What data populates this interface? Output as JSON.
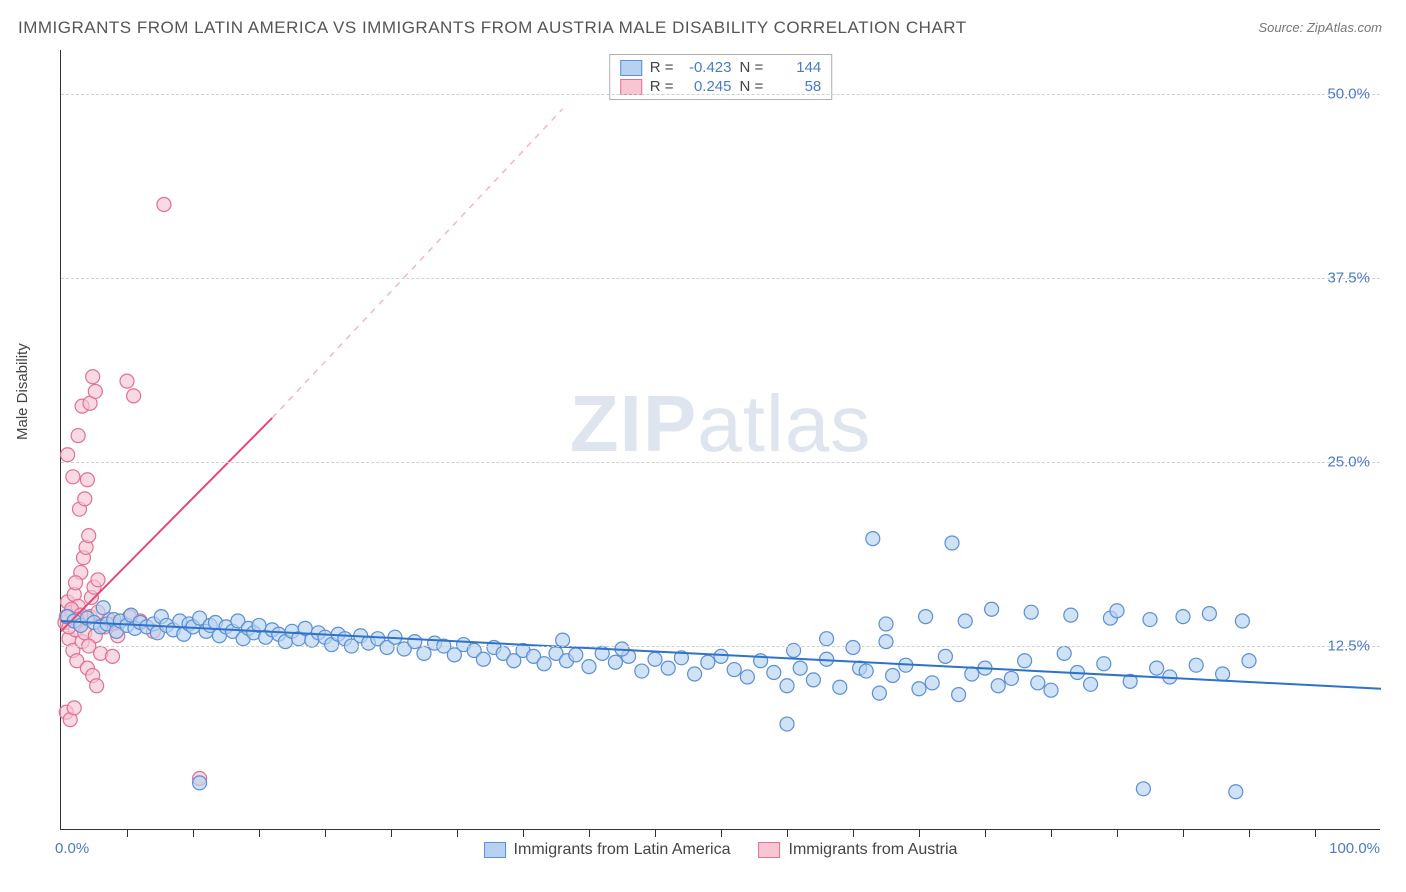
{
  "title": "IMMIGRANTS FROM LATIN AMERICA VS IMMIGRANTS FROM AUSTRIA MALE DISABILITY CORRELATION CHART",
  "source": "Source: ZipAtlas.com",
  "ylabel": "Male Disability",
  "watermark_a": "ZIP",
  "watermark_b": "atlas",
  "chart": {
    "type": "scatter",
    "xlim": [
      0,
      100
    ],
    "ylim": [
      0,
      53
    ],
    "xtick_labels": {
      "min": "0.0%",
      "max": "100.0%"
    },
    "xtick_minor_step": 5,
    "ytick_step": 12.5,
    "ytick_labels": [
      "12.5%",
      "25.0%",
      "37.5%",
      "50.0%"
    ],
    "grid_color": "#d0d0d0",
    "background_color": "#ffffff",
    "axis_color": "#333333",
    "marker_radius": 7,
    "marker_stroke_width": 1.2,
    "series": [
      {
        "name": "Immigrants from Latin America",
        "color_fill": "#b7d2f0",
        "color_stroke": "#5b8fd6",
        "R": "-0.423",
        "N": "144",
        "trend": {
          "x1": 0,
          "y1": 14.2,
          "x2": 100,
          "y2": 9.6,
          "color": "#2f72c9",
          "dash": false,
          "width": 2
        },
        "points": [
          [
            0.5,
            14.5
          ],
          [
            1,
            14.2
          ],
          [
            1.5,
            13.9
          ],
          [
            2,
            14.4
          ],
          [
            2.5,
            14.1
          ],
          [
            3,
            13.8
          ],
          [
            3.2,
            15.1
          ],
          [
            3.5,
            14.0
          ],
          [
            4,
            14.3
          ],
          [
            4.2,
            13.5
          ],
          [
            4.5,
            14.2
          ],
          [
            5,
            13.9
          ],
          [
            5.3,
            14.6
          ],
          [
            5.6,
            13.7
          ],
          [
            6,
            14.1
          ],
          [
            6.5,
            13.8
          ],
          [
            7,
            14.0
          ],
          [
            7.3,
            13.4
          ],
          [
            7.6,
            14.5
          ],
          [
            8,
            13.9
          ],
          [
            8.5,
            13.6
          ],
          [
            9,
            14.2
          ],
          [
            9.3,
            13.3
          ],
          [
            9.7,
            14.0
          ],
          [
            10,
            13.8
          ],
          [
            10.5,
            14.4
          ],
          [
            11,
            13.5
          ],
          [
            11.3,
            13.9
          ],
          [
            11.7,
            14.1
          ],
          [
            12,
            13.2
          ],
          [
            12.5,
            13.8
          ],
          [
            13,
            13.5
          ],
          [
            13.4,
            14.2
          ],
          [
            13.8,
            13.0
          ],
          [
            14.2,
            13.7
          ],
          [
            14.6,
            13.4
          ],
          [
            15,
            13.9
          ],
          [
            15.5,
            13.1
          ],
          [
            16,
            13.6
          ],
          [
            16.5,
            13.3
          ],
          [
            17,
            12.8
          ],
          [
            17.5,
            13.5
          ],
          [
            18,
            13.0
          ],
          [
            18.5,
            13.7
          ],
          [
            19,
            12.9
          ],
          [
            19.5,
            13.4
          ],
          [
            20,
            13.1
          ],
          [
            20.5,
            12.6
          ],
          [
            21,
            13.3
          ],
          [
            21.5,
            13.0
          ],
          [
            22,
            12.5
          ],
          [
            22.7,
            13.2
          ],
          [
            23.3,
            12.7
          ],
          [
            24,
            13.0
          ],
          [
            24.7,
            12.4
          ],
          [
            25.3,
            13.1
          ],
          [
            26,
            12.3
          ],
          [
            26.8,
            12.8
          ],
          [
            27.5,
            12.0
          ],
          [
            28.3,
            12.7
          ],
          [
            29,
            12.5
          ],
          [
            29.8,
            11.9
          ],
          [
            30.5,
            12.6
          ],
          [
            31.3,
            12.2
          ],
          [
            32,
            11.6
          ],
          [
            32.8,
            12.4
          ],
          [
            33.5,
            12.0
          ],
          [
            34.3,
            11.5
          ],
          [
            35,
            12.2
          ],
          [
            35.8,
            11.8
          ],
          [
            36.6,
            11.3
          ],
          [
            37.5,
            12.0
          ],
          [
            38.3,
            11.5
          ],
          [
            39,
            11.9
          ],
          [
            40,
            11.1
          ],
          [
            41,
            12.0
          ],
          [
            42,
            11.4
          ],
          [
            43,
            11.8
          ],
          [
            44,
            10.8
          ],
          [
            45,
            11.6
          ],
          [
            46,
            11.0
          ],
          [
            47,
            11.7
          ],
          [
            48,
            10.6
          ],
          [
            49,
            11.4
          ],
          [
            50,
            11.8
          ],
          [
            51,
            10.9
          ],
          [
            52,
            10.4
          ],
          [
            53,
            11.5
          ],
          [
            54,
            10.7
          ],
          [
            55,
            9.8
          ],
          [
            55.5,
            12.2
          ],
          [
            56,
            11.0
          ],
          [
            57,
            10.2
          ],
          [
            58,
            11.6
          ],
          [
            59,
            9.7
          ],
          [
            60,
            12.4
          ],
          [
            60.5,
            11.0
          ],
          [
            61,
            10.8
          ],
          [
            61.5,
            19.8
          ],
          [
            62,
            9.3
          ],
          [
            62.5,
            12.8
          ],
          [
            63,
            10.5
          ],
          [
            64,
            11.2
          ],
          [
            65,
            9.6
          ],
          [
            65.5,
            14.5
          ],
          [
            66,
            10.0
          ],
          [
            67,
            11.8
          ],
          [
            67.5,
            19.5
          ],
          [
            68,
            9.2
          ],
          [
            68.5,
            14.2
          ],
          [
            69,
            10.6
          ],
          [
            70,
            11.0
          ],
          [
            70.5,
            15.0
          ],
          [
            71,
            9.8
          ],
          [
            72,
            10.3
          ],
          [
            73,
            11.5
          ],
          [
            73.5,
            14.8
          ],
          [
            74,
            10.0
          ],
          [
            75,
            9.5
          ],
          [
            76,
            12.0
          ],
          [
            76.5,
            14.6
          ],
          [
            77,
            10.7
          ],
          [
            78,
            9.9
          ],
          [
            79,
            11.3
          ],
          [
            79.5,
            14.4
          ],
          [
            80,
            14.9
          ],
          [
            81,
            10.1
          ],
          [
            82,
            2.8
          ],
          [
            82.5,
            14.3
          ],
          [
            83,
            11.0
          ],
          [
            84,
            10.4
          ],
          [
            85,
            14.5
          ],
          [
            86,
            11.2
          ],
          [
            87,
            14.7
          ],
          [
            88,
            10.6
          ],
          [
            89,
            2.6
          ],
          [
            89.5,
            14.2
          ],
          [
            90,
            11.5
          ],
          [
            55,
            7.2
          ],
          [
            58,
            13.0
          ],
          [
            10.5,
            3.2
          ],
          [
            62.5,
            14.0
          ],
          [
            42.5,
            12.3
          ],
          [
            38,
            12.9
          ]
        ]
      },
      {
        "name": "Immigrants from Austria",
        "color_fill": "#f7c6d3",
        "color_stroke": "#e36f95",
        "R": "0.245",
        "N": "58",
        "trend": {
          "x1": 0,
          "y1": 13.5,
          "x2": 16,
          "y2": 28.0,
          "color": "#e24a7a",
          "dash": false,
          "width": 2
        },
        "trend_ext": {
          "x1": 16,
          "y1": 28.0,
          "x2": 38,
          "y2": 49.0,
          "color": "#f3b6c8",
          "dash": true,
          "width": 1.5
        },
        "points": [
          [
            0.3,
            14.1
          ],
          [
            0.5,
            15.5
          ],
          [
            0.6,
            13.0
          ],
          [
            0.8,
            14.8
          ],
          [
            0.9,
            12.2
          ],
          [
            1.0,
            16.0
          ],
          [
            1.1,
            13.6
          ],
          [
            1.2,
            11.5
          ],
          [
            1.3,
            15.2
          ],
          [
            1.4,
            14.0
          ],
          [
            1.5,
            17.5
          ],
          [
            1.6,
            12.8
          ],
          [
            1.7,
            18.5
          ],
          [
            1.8,
            13.4
          ],
          [
            1.9,
            19.2
          ],
          [
            2.0,
            11.0
          ],
          [
            2.1,
            20.0
          ],
          [
            2.2,
            14.5
          ],
          [
            2.3,
            15.8
          ],
          [
            2.4,
            10.5
          ],
          [
            2.5,
            16.5
          ],
          [
            2.6,
            13.2
          ],
          [
            2.7,
            9.8
          ],
          [
            2.8,
            17.0
          ],
          [
            0.4,
            8.0
          ],
          [
            0.7,
            7.5
          ],
          [
            1.0,
            8.3
          ],
          [
            1.4,
            21.8
          ],
          [
            1.8,
            22.5
          ],
          [
            2.0,
            23.8
          ],
          [
            0.5,
            25.5
          ],
          [
            0.9,
            24.0
          ],
          [
            1.3,
            26.8
          ],
          [
            1.6,
            28.8
          ],
          [
            2.2,
            29.0
          ],
          [
            2.6,
            29.8
          ],
          [
            2.4,
            30.8
          ],
          [
            5.0,
            30.5
          ],
          [
            5.5,
            29.5
          ],
          [
            4.0,
            14.0
          ],
          [
            4.3,
            13.2
          ],
          [
            5.2,
            14.5
          ],
          [
            3.0,
            12.0
          ],
          [
            3.3,
            13.8
          ],
          [
            3.6,
            14.3
          ],
          [
            3.9,
            11.8
          ],
          [
            6.0,
            14.2
          ],
          [
            7.0,
            13.5
          ],
          [
            7.8,
            42.5
          ],
          [
            0.8,
            15.0
          ],
          [
            1.1,
            16.8
          ],
          [
            1.5,
            14.6
          ],
          [
            0.6,
            13.8
          ],
          [
            1.2,
            14.3
          ],
          [
            2.1,
            12.5
          ],
          [
            10.5,
            3.5
          ],
          [
            2.8,
            14.8
          ],
          [
            0.4,
            14.5
          ]
        ]
      }
    ]
  },
  "legend": {
    "series1": "Immigrants from Latin America",
    "series2": "Immigrants from Austria"
  },
  "stats_labels": {
    "R": "R =",
    "N": "N ="
  }
}
